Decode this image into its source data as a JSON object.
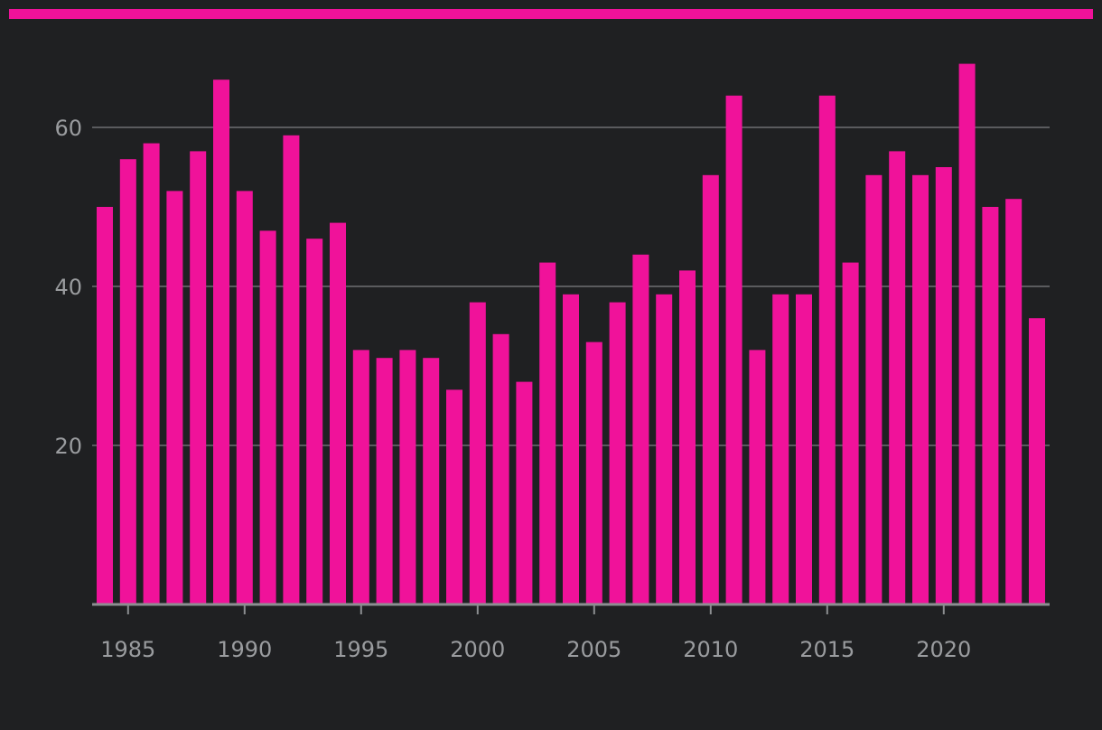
{
  "colors": {
    "background": "#1f2022",
    "accent": "#f0129a",
    "bar": "#f0129a",
    "grid": "#5a5b5e",
    "axis": "#8c8e91",
    "tick_text": "#9a9c9f"
  },
  "chart_data": {
    "type": "bar",
    "title": "",
    "xlabel": "",
    "ylabel": "",
    "categories": [
      1984,
      1985,
      1986,
      1987,
      1988,
      1989,
      1990,
      1991,
      1992,
      1993,
      1994,
      1995,
      1996,
      1997,
      1998,
      1999,
      2000,
      2001,
      2002,
      2003,
      2004,
      2005,
      2006,
      2007,
      2008,
      2009,
      2010,
      2011,
      2012,
      2013,
      2014,
      2015,
      2016,
      2017,
      2018,
      2019,
      2020,
      2021,
      2022,
      2023,
      2024
    ],
    "values": [
      50,
      56,
      58,
      52,
      57,
      66,
      52,
      47,
      59,
      46,
      48,
      32,
      31,
      32,
      31,
      27,
      38,
      34,
      28,
      43,
      39,
      33,
      38,
      44,
      39,
      42,
      54,
      64,
      32,
      39,
      39,
      64,
      43,
      54,
      57,
      54,
      55,
      68,
      50,
      51,
      36
    ],
    "ylim": [
      0,
      70
    ],
    "y_ticks": [
      20,
      40,
      60
    ],
    "y_tick_labels": [
      "20",
      "40",
      "60"
    ],
    "x_ticks": [
      1985,
      1990,
      1995,
      2000,
      2005,
      2010,
      2015,
      2020
    ],
    "x_tick_labels": [
      "1985",
      "1990",
      "1995",
      "2000",
      "2005",
      "2010",
      "2015",
      "2020"
    ],
    "grid": true,
    "legend": "none"
  }
}
